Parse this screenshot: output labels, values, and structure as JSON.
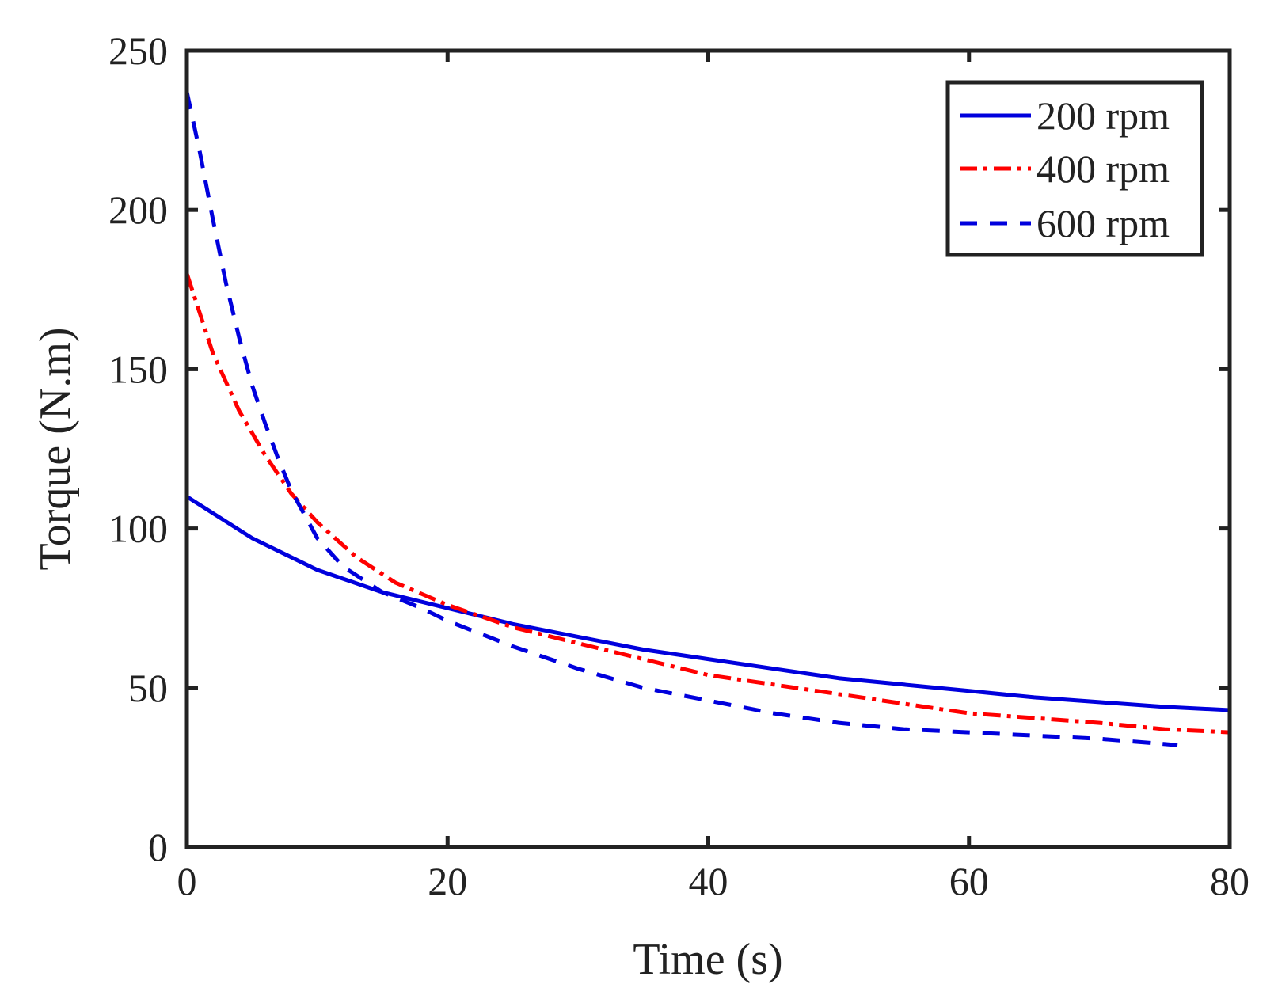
{
  "chart_data": {
    "type": "line",
    "title": "",
    "xlabel": "Time (s)",
    "ylabel": "Torque (N.m)",
    "xlim": [
      0,
      80
    ],
    "ylim": [
      0,
      250
    ],
    "xticks": [
      0,
      20,
      40,
      60,
      80
    ],
    "yticks": [
      0,
      50,
      100,
      150,
      200,
      250
    ],
    "grid": false,
    "legend_position": "top-right",
    "series": [
      {
        "name": "200 rpm",
        "color": "#0000dd",
        "style": "solid",
        "x": [
          0,
          5,
          10,
          15,
          20,
          25,
          30,
          35,
          40,
          45,
          50,
          55,
          60,
          65,
          70,
          75,
          80
        ],
        "y": [
          110,
          97,
          87,
          80,
          75,
          70,
          66,
          62,
          59,
          56,
          53,
          51,
          49,
          47,
          45.5,
          44,
          43
        ]
      },
      {
        "name": "400 rpm",
        "color": "#ff0000",
        "style": "dashdot",
        "x": [
          0,
          2,
          4,
          6,
          8,
          10,
          13,
          16,
          20,
          25,
          30,
          35,
          40,
          45,
          50,
          55,
          60,
          65,
          70,
          75,
          80
        ],
        "y": [
          180,
          155,
          137,
          123,
          111,
          102,
          91,
          83,
          76,
          69,
          64,
          59,
          54,
          51,
          48,
          45,
          42,
          40.5,
          39,
          37,
          36
        ]
      },
      {
        "name": "600 rpm",
        "color": "#0000dd",
        "style": "dashed",
        "x": [
          0,
          1,
          2,
          3,
          4,
          5,
          6,
          7,
          8,
          10,
          12,
          15,
          18,
          20,
          25,
          30,
          35,
          40,
          45,
          50,
          55,
          60,
          65,
          70,
          76
        ],
        "y": [
          237,
          218,
          197,
          177,
          160,
          145,
          133,
          122,
          112,
          97,
          88,
          80,
          75,
          71,
          63,
          56,
          50,
          46,
          42,
          39,
          37,
          36,
          35,
          34,
          32
        ]
      }
    ]
  }
}
